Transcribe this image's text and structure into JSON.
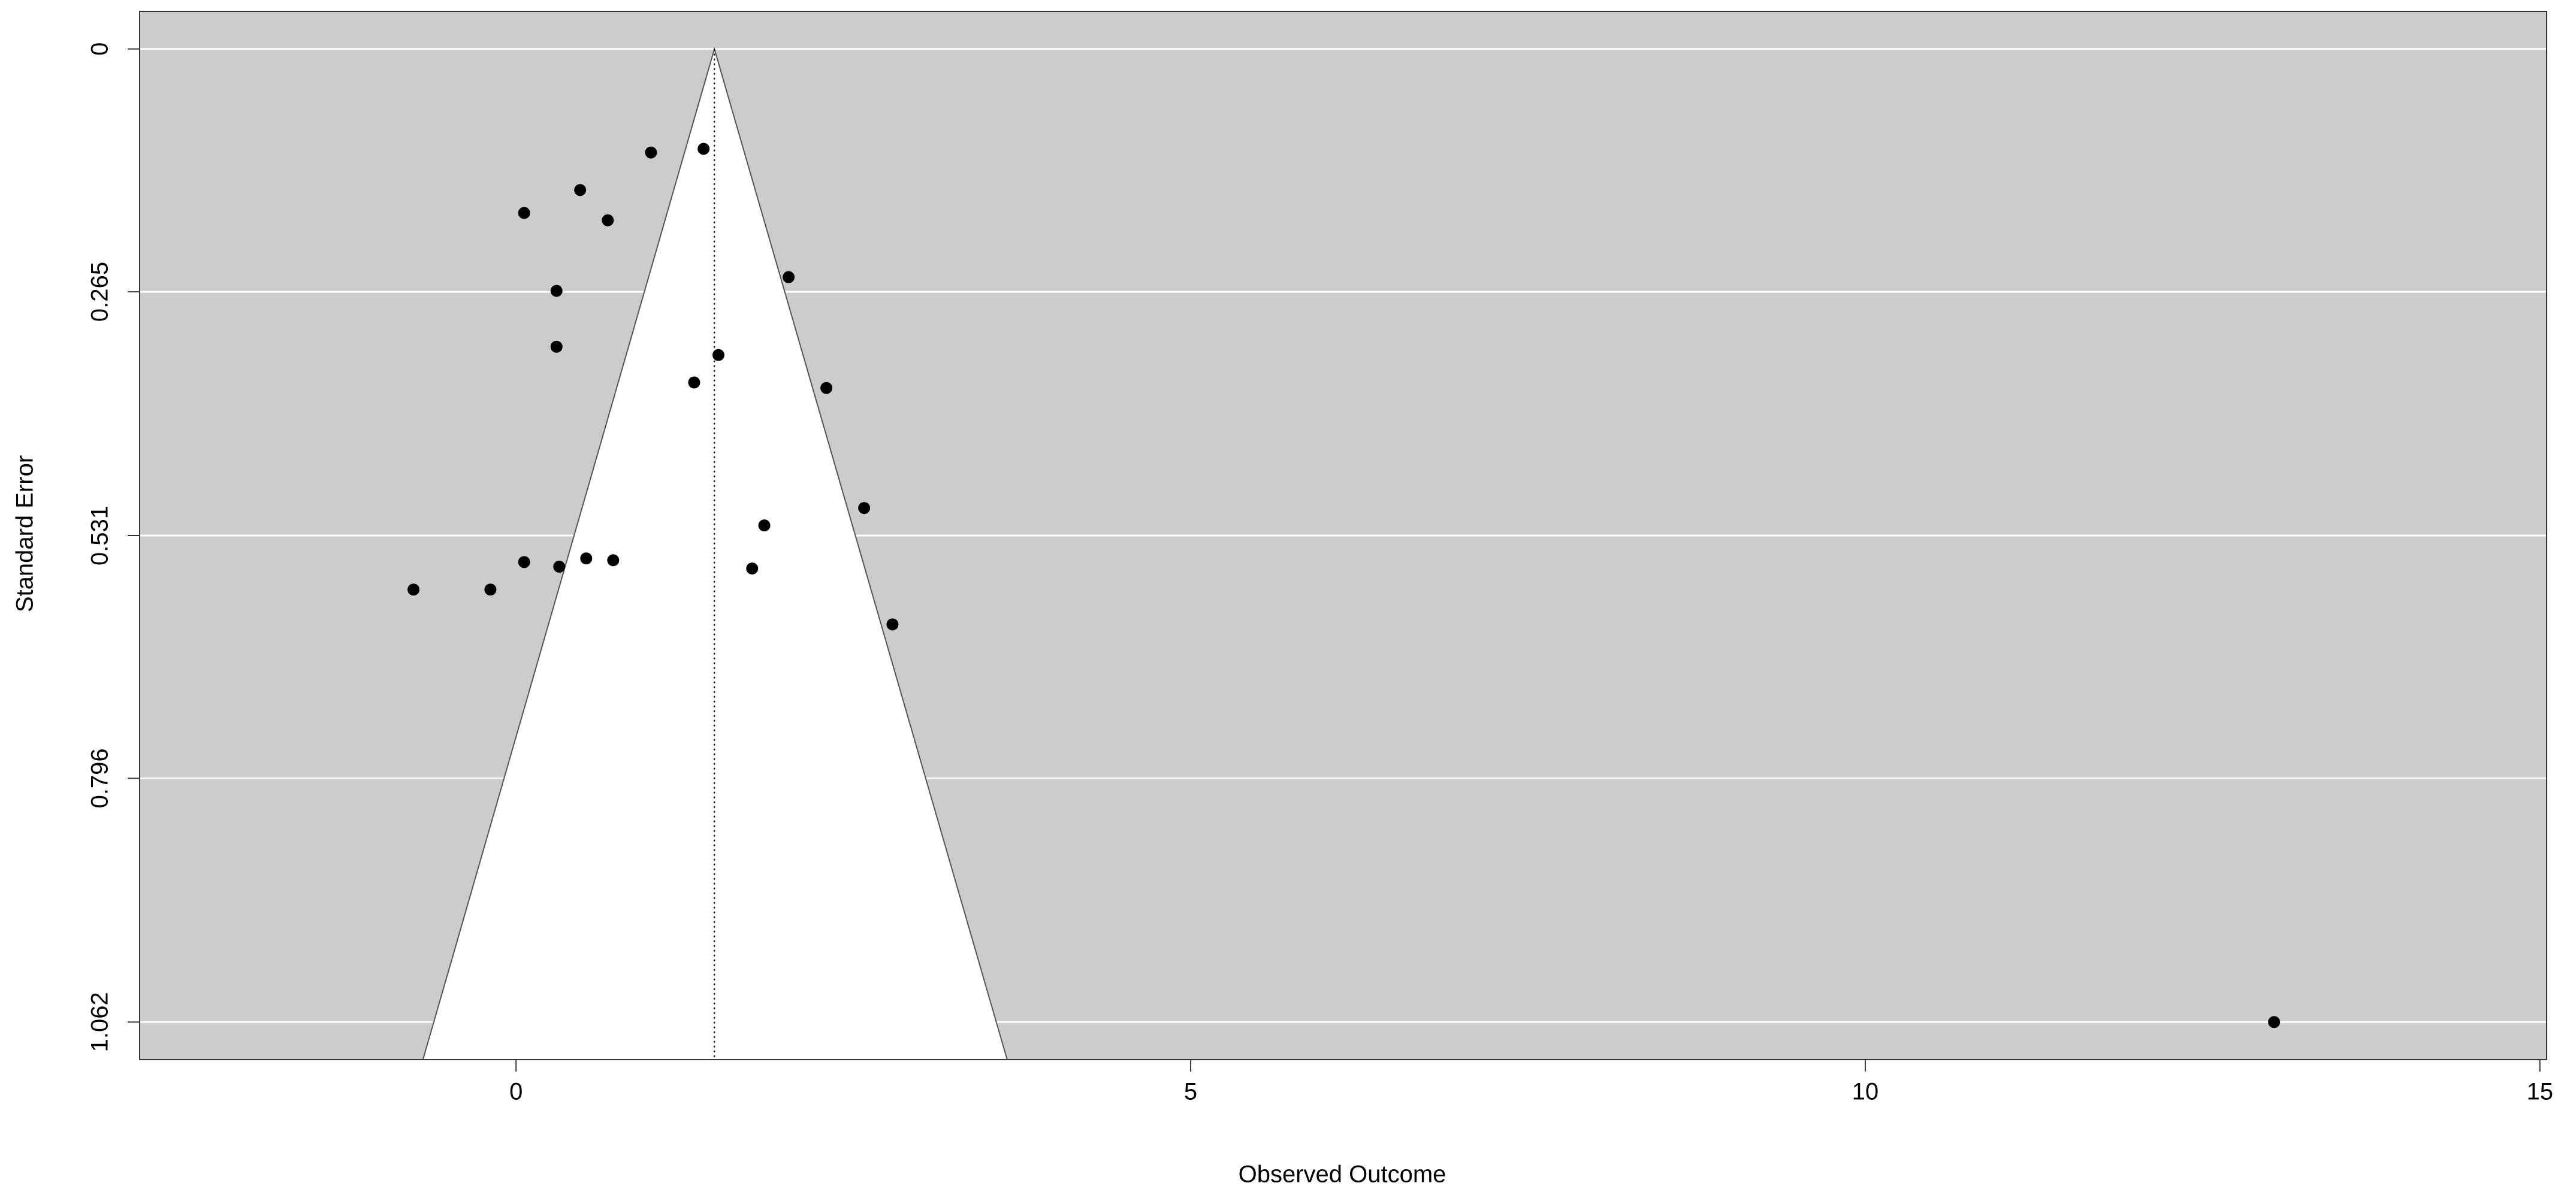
{
  "chart_data": {
    "type": "scatter",
    "xlabel": "Observed Outcome",
    "ylabel": "Standard Error",
    "x": [
      1.0,
      1.39,
      0.475,
      0.06,
      0.68,
      2.02,
      0.3,
      0.3,
      1.5,
      1.32,
      2.3,
      2.58,
      1.84,
      0.06,
      0.32,
      0.52,
      0.72,
      1.75,
      -0.76,
      -0.19,
      2.79,
      13.03
    ],
    "values": [
      0.113,
      0.109,
      0.154,
      0.179,
      0.187,
      0.249,
      0.264,
      0.325,
      0.334,
      0.364,
      0.37,
      0.501,
      0.52,
      0.56,
      0.565,
      0.556,
      0.558,
      0.567,
      0.59,
      0.59,
      0.628,
      1.062
    ],
    "color": "#000000",
    "xlim": [
      -2.79,
      15.05
    ],
    "ylim": [
      -0.041,
      1.103
    ],
    "y_reversed": true,
    "xticks": [
      0,
      5,
      10,
      15
    ],
    "yticks": [
      0,
      0.265,
      0.531,
      0.796,
      1.062
    ],
    "grid": true,
    "background": "#cccccc",
    "funnel": {
      "x": [
        -0.69,
        1.47,
        3.64
      ],
      "y": [
        1.103,
        0,
        1.103
      ],
      "color": "#ffffff"
    },
    "reference_x": 1.47
  }
}
